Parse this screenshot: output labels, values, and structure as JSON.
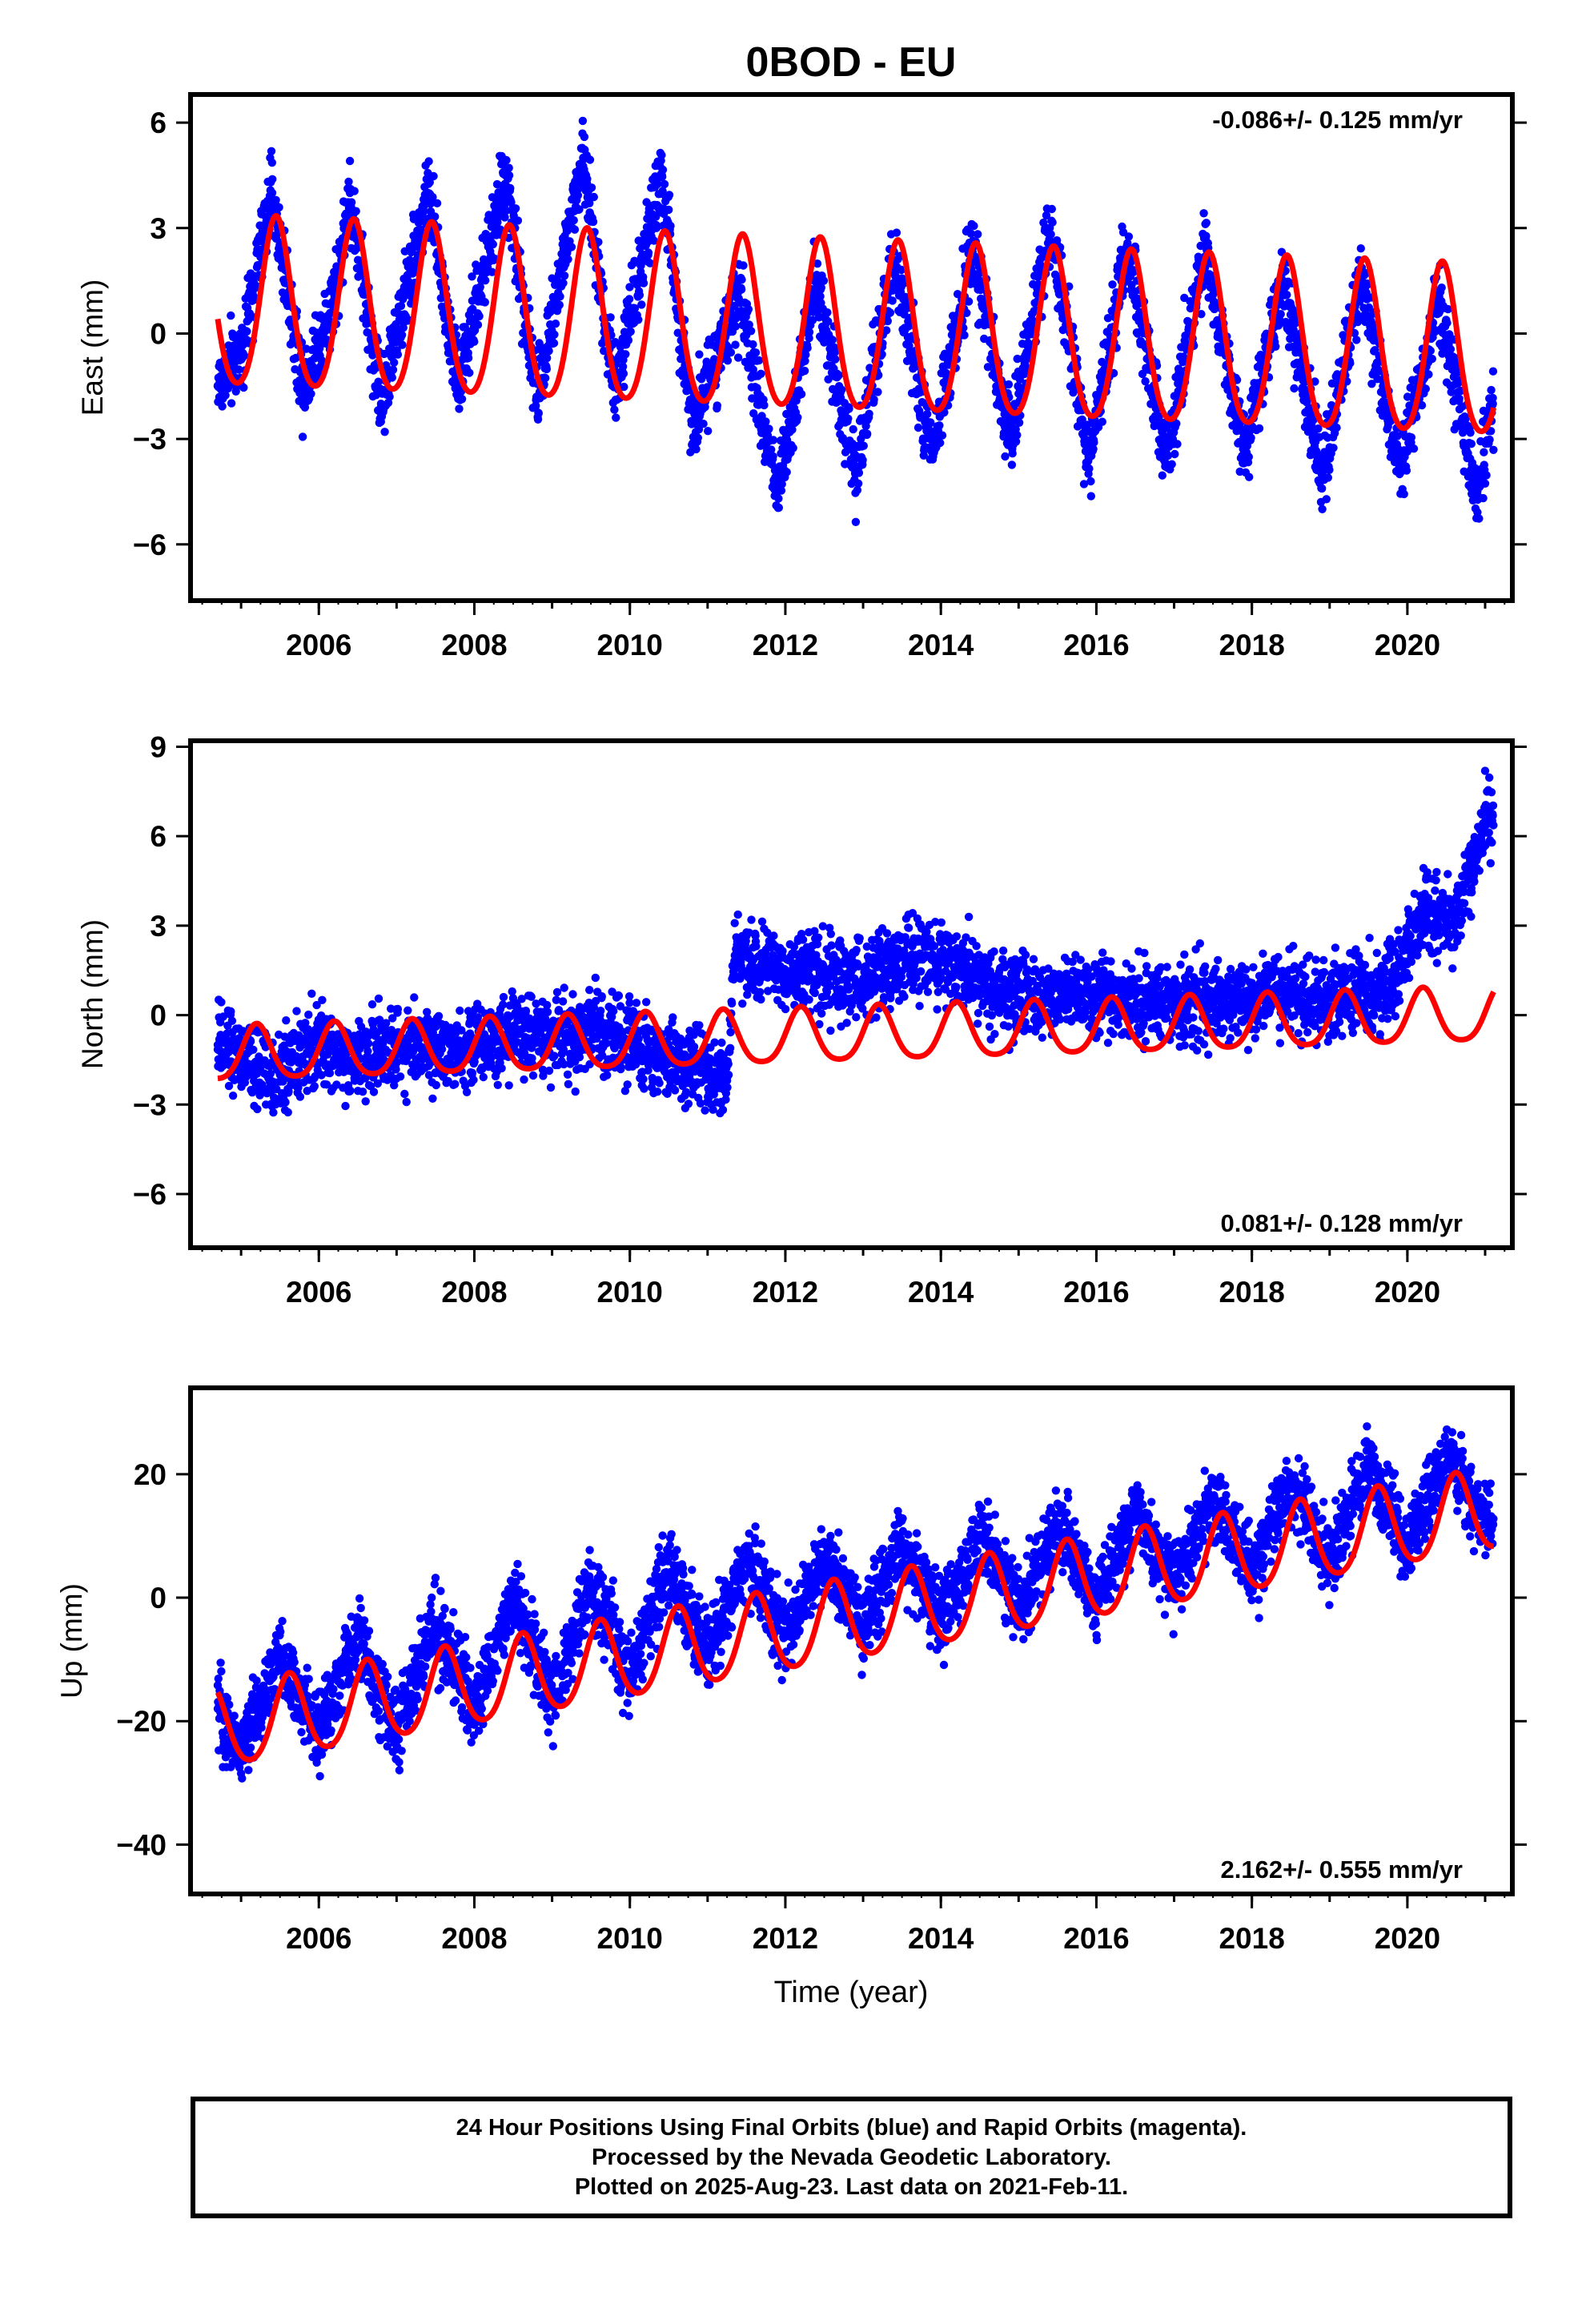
{
  "title": "0BOD - EU",
  "xlabel": "Time (year)",
  "colors": {
    "data": "#0000ff",
    "model": "#ff0000",
    "frame": "#000000"
  },
  "footer": {
    "line1": "24 Hour Positions Using Final Orbits (blue) and Rapid Orbits (magenta).",
    "line2": "Processed by the Nevada Geodetic Laboratory.",
    "line3": "Plotted on 2025-Aug-23. Last data on 2021-Feb-11."
  },
  "chart_data": [
    {
      "type": "scatter",
      "ylabel": "East (mm)",
      "rate_label": "-0.086+/- 0.125 mm/yr",
      "rate_position": "top-right",
      "xlim": [
        2004.35,
        2021.35
      ],
      "ylim": [
        -7.6,
        6.8
      ],
      "x_ticks": [
        2006,
        2008,
        2010,
        2012,
        2014,
        2016,
        2018,
        2020
      ],
      "y_ticks": [
        -6,
        -3,
        0,
        3,
        6
      ],
      "data_range": [
        2004.7,
        2021.11
      ],
      "series": [
        {
          "name": "Final Orbits (blue)",
          "kind": "daily positions",
          "points": [
            [
              2004.7,
              -1.5
            ],
            [
              2005.0,
              -0.5
            ],
            [
              2005.4,
              4.0
            ],
            [
              2005.8,
              -1.5
            ],
            [
              2006.2,
              1.0
            ],
            [
              2006.4,
              4.0
            ],
            [
              2006.8,
              -2.0
            ],
            [
              2007.4,
              4.0
            ],
            [
              2007.8,
              -1.5
            ],
            [
              2008.4,
              4.5
            ],
            [
              2008.8,
              -1.8
            ],
            [
              2009.4,
              5.0
            ],
            [
              2009.8,
              -1.5
            ],
            [
              2010.4,
              4.5
            ],
            [
              2010.8,
              -2.5
            ],
            [
              2011.4,
              1.0
            ],
            [
              2011.9,
              -4.5
            ],
            [
              2012.4,
              1.5
            ],
            [
              2012.9,
              -4.0
            ],
            [
              2013.4,
              2.0
            ],
            [
              2013.9,
              -3.5
            ],
            [
              2014.4,
              2.5
            ],
            [
              2014.9,
              -3.0
            ],
            [
              2015.4,
              3.0
            ],
            [
              2015.9,
              -3.5
            ],
            [
              2016.4,
              2.5
            ],
            [
              2016.9,
              -3.5
            ],
            [
              2017.4,
              2.5
            ],
            [
              2017.9,
              -3.5
            ],
            [
              2018.4,
              1.5
            ],
            [
              2018.9,
              -4.0
            ],
            [
              2019.4,
              1.5
            ],
            [
              2019.9,
              -4.0
            ],
            [
              2020.4,
              1.0
            ],
            [
              2020.9,
              -4.5
            ],
            [
              2021.1,
              -2.0
            ]
          ]
        },
        {
          "name": "Model fit",
          "kind": "trend+seasonal",
          "offset": 0.0,
          "rate": -0.086,
          "annual_amplitude": 2.4,
          "semiannual_amplitude": 0.3,
          "annual_phase_peak": 0.45
        }
      ]
    },
    {
      "type": "scatter",
      "ylabel": "North (mm)",
      "rate_label": "0.081+/- 0.128 mm/yr",
      "rate_position": "bottom-right",
      "xlim": [
        2004.35,
        2021.35
      ],
      "ylim": [
        -7.8,
        9.2
      ],
      "x_ticks": [
        2006,
        2008,
        2010,
        2012,
        2014,
        2016,
        2018,
        2020
      ],
      "y_ticks": [
        -6,
        -3,
        0,
        3,
        6,
        9
      ],
      "data_range": [
        2004.7,
        2021.11
      ],
      "series": [
        {
          "name": "Final Orbits (blue)",
          "kind": "daily positions",
          "points": [
            [
              2004.7,
              -1.0
            ],
            [
              2005.0,
              -1.5
            ],
            [
              2005.5,
              -2.0
            ],
            [
              2006.0,
              -1.0
            ],
            [
              2006.5,
              -1.5
            ],
            [
              2007.0,
              -1.0
            ],
            [
              2007.5,
              -1.0
            ],
            [
              2008.0,
              -1.0
            ],
            [
              2008.5,
              -0.5
            ],
            [
              2009.0,
              -0.8
            ],
            [
              2009.5,
              -0.5
            ],
            [
              2010.0,
              -1.0
            ],
            [
              2010.5,
              -1.5
            ],
            [
              2011.0,
              -2.0
            ],
            [
              2011.25,
              -2.2
            ],
            [
              2011.35,
              2.0
            ],
            [
              2011.8,
              1.5
            ],
            [
              2012.3,
              1.5
            ],
            [
              2012.8,
              1.0
            ],
            [
              2013.3,
              1.5
            ],
            [
              2013.8,
              2.0
            ],
            [
              2014.3,
              1.5
            ],
            [
              2014.8,
              0.8
            ],
            [
              2015.3,
              0.5
            ],
            [
              2015.8,
              0.8
            ],
            [
              2016.3,
              0.5
            ],
            [
              2016.8,
              0.5
            ],
            [
              2017.3,
              0.5
            ],
            [
              2017.8,
              0.5
            ],
            [
              2018.3,
              0.8
            ],
            [
              2018.8,
              0.5
            ],
            [
              2019.3,
              0.8
            ],
            [
              2019.8,
              1.0
            ],
            [
              2020.2,
              3.5
            ],
            [
              2020.6,
              3.0
            ],
            [
              2021.0,
              6.5
            ]
          ]
        },
        {
          "name": "Model fit",
          "kind": "trend+seasonal",
          "offset": -0.7,
          "rate": 0.081,
          "annual_amplitude": 0.9,
          "semiannual_amplitude": 0.15,
          "annual_phase_peak": 0.2
        }
      ]
    },
    {
      "type": "scatter",
      "ylabel": "Up (mm)",
      "rate_label": "2.162+/- 0.555 mm/yr",
      "rate_position": "bottom-right",
      "xlim": [
        2004.35,
        2021.35
      ],
      "ylim": [
        -48,
        34
      ],
      "x_ticks": [
        2006,
        2008,
        2010,
        2012,
        2014,
        2016,
        2018,
        2020
      ],
      "y_ticks": [
        -40,
        -20,
        0,
        20
      ],
      "data_range": [
        2004.7,
        2021.11
      ],
      "series": [
        {
          "name": "Final Orbits (blue)",
          "kind": "daily positions",
          "points": [
            [
              2004.7,
              -18
            ],
            [
              2005.0,
              -25
            ],
            [
              2005.5,
              -10
            ],
            [
              2006.0,
              -22
            ],
            [
              2006.5,
              -6
            ],
            [
              2007.0,
              -22
            ],
            [
              2007.5,
              -4
            ],
            [
              2008.0,
              -18
            ],
            [
              2008.5,
              0
            ],
            [
              2009.0,
              -16
            ],
            [
              2009.5,
              2
            ],
            [
              2010.0,
              -12
            ],
            [
              2010.5,
              4
            ],
            [
              2011.0,
              -10
            ],
            [
              2011.5,
              6
            ],
            [
              2012.0,
              -6
            ],
            [
              2012.5,
              6
            ],
            [
              2013.0,
              -5
            ],
            [
              2013.5,
              8
            ],
            [
              2014.0,
              -3
            ],
            [
              2014.5,
              10
            ],
            [
              2015.0,
              -2
            ],
            [
              2015.5,
              12
            ],
            [
              2016.0,
              0
            ],
            [
              2016.5,
              14
            ],
            [
              2017.0,
              2
            ],
            [
              2017.5,
              16
            ],
            [
              2018.0,
              4
            ],
            [
              2018.5,
              18
            ],
            [
              2019.0,
              6
            ],
            [
              2019.5,
              22
            ],
            [
              2020.0,
              8
            ],
            [
              2020.5,
              24
            ],
            [
              2020.9,
              14
            ],
            [
              2021.1,
              12
            ]
          ]
        },
        {
          "name": "Model fit",
          "kind": "trend+seasonal",
          "offset": -3.5,
          "rate": 2.162,
          "annual_amplitude": 6.5,
          "semiannual_amplitude": 0.8,
          "annual_phase_peak": 0.62
        }
      ]
    }
  ]
}
